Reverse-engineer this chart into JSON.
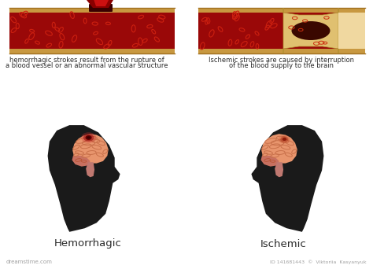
{
  "background_color": "#ffffff",
  "left_label": "Hemorrhagic",
  "right_label": "Ischemic",
  "left_desc_line1": "hemorrhagic strokes result from the rupture of",
  "left_desc_line2": "a blood vessel or an abnormal vascular structure",
  "right_desc_line1": "Ischemic strokes are caused by interruption",
  "right_desc_line2": "of the blood supply to the brain",
  "watermark": "dreamstime.com",
  "watermark2": "ID 141681443  ©  Viktoriia  Kasyanyuk",
  "head_color": "#1a1a1a",
  "brain_color": "#e8956d",
  "brain_fold_color": "#c8704a",
  "brain_dark": "#b85535",
  "cerebellum_color": "#c87060",
  "stem_color": "#c07870",
  "vessel_dark_red": "#5a0000",
  "vessel_red": "#8b0000",
  "vessel_bright_red": "#cc1111",
  "vessel_gold_top": "#d4a060",
  "vessel_gold_bot": "#b88040",
  "vessel_light_gold": "#e8c080",
  "blockage_base": "#e8c878",
  "blockage_highlight": "#f5e0a0",
  "text_dark": "#2a2a2a",
  "text_color": "#333333",
  "label_fontsize": 9.5,
  "desc_fontsize": 6.0,
  "wm_color": "#888888",
  "wm_fontsize": 5.0
}
